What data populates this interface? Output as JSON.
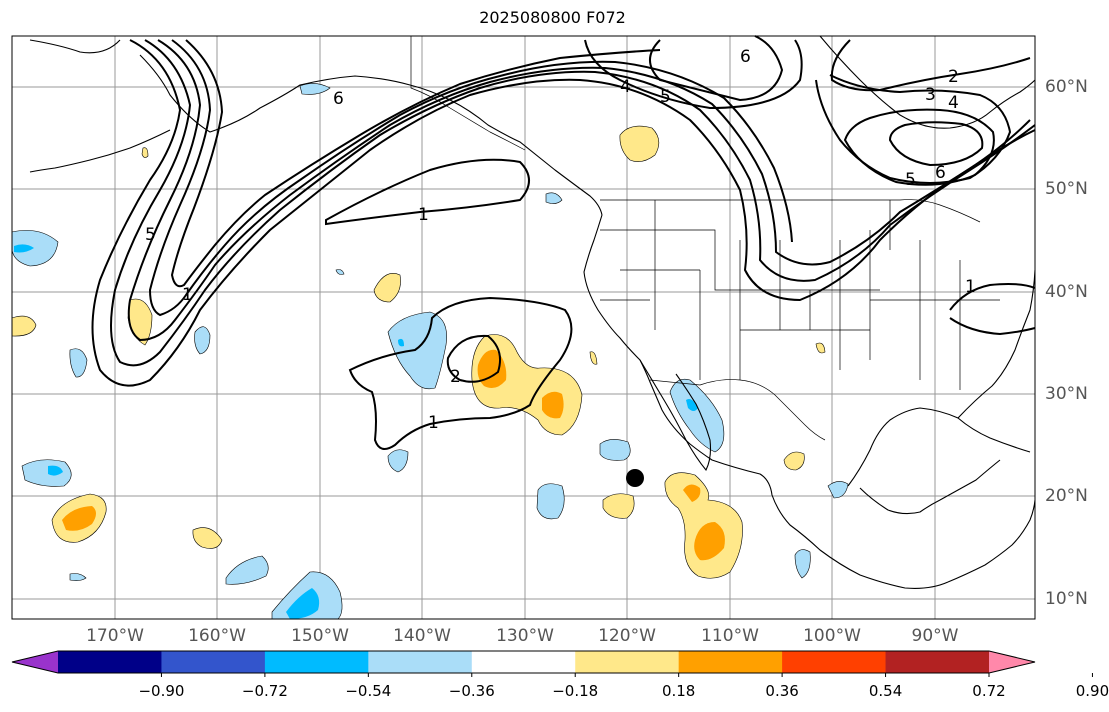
{
  "title": "2025080800 F072",
  "lat_labels": [
    "60°N",
    "50°N",
    "40°N",
    "30°N",
    "20°N",
    "10°N"
  ],
  "lon_labels": [
    "170°W",
    "160°W",
    "150°W",
    "140°W",
    "130°W",
    "120°W",
    "110°W",
    "100°W",
    "90°W"
  ],
  "colorbar": {
    "colors": [
      "#9933cc",
      "#000088",
      "#3355cc",
      "#00bbff",
      "#aaddf8",
      "#ffffff",
      "#ffe88a",
      "#ffa000",
      "#ff4000",
      "#b22222",
      "#ff88aa"
    ],
    "ticks": [
      "−0.90",
      "−0.72",
      "−0.54",
      "−0.36",
      "−0.18",
      "0.18",
      "0.36",
      "0.54",
      "0.72",
      "0.90"
    ]
  },
  "contour_labels": [
    "1",
    "2",
    "3",
    "4",
    "5",
    "6"
  ],
  "colors": {
    "land_outline": "#000000",
    "grid": "#999999",
    "pos_light": "#ffe88a",
    "pos_mid": "#ffa000",
    "neg_light": "#aaddf8",
    "neg_mid": "#00bbff"
  }
}
